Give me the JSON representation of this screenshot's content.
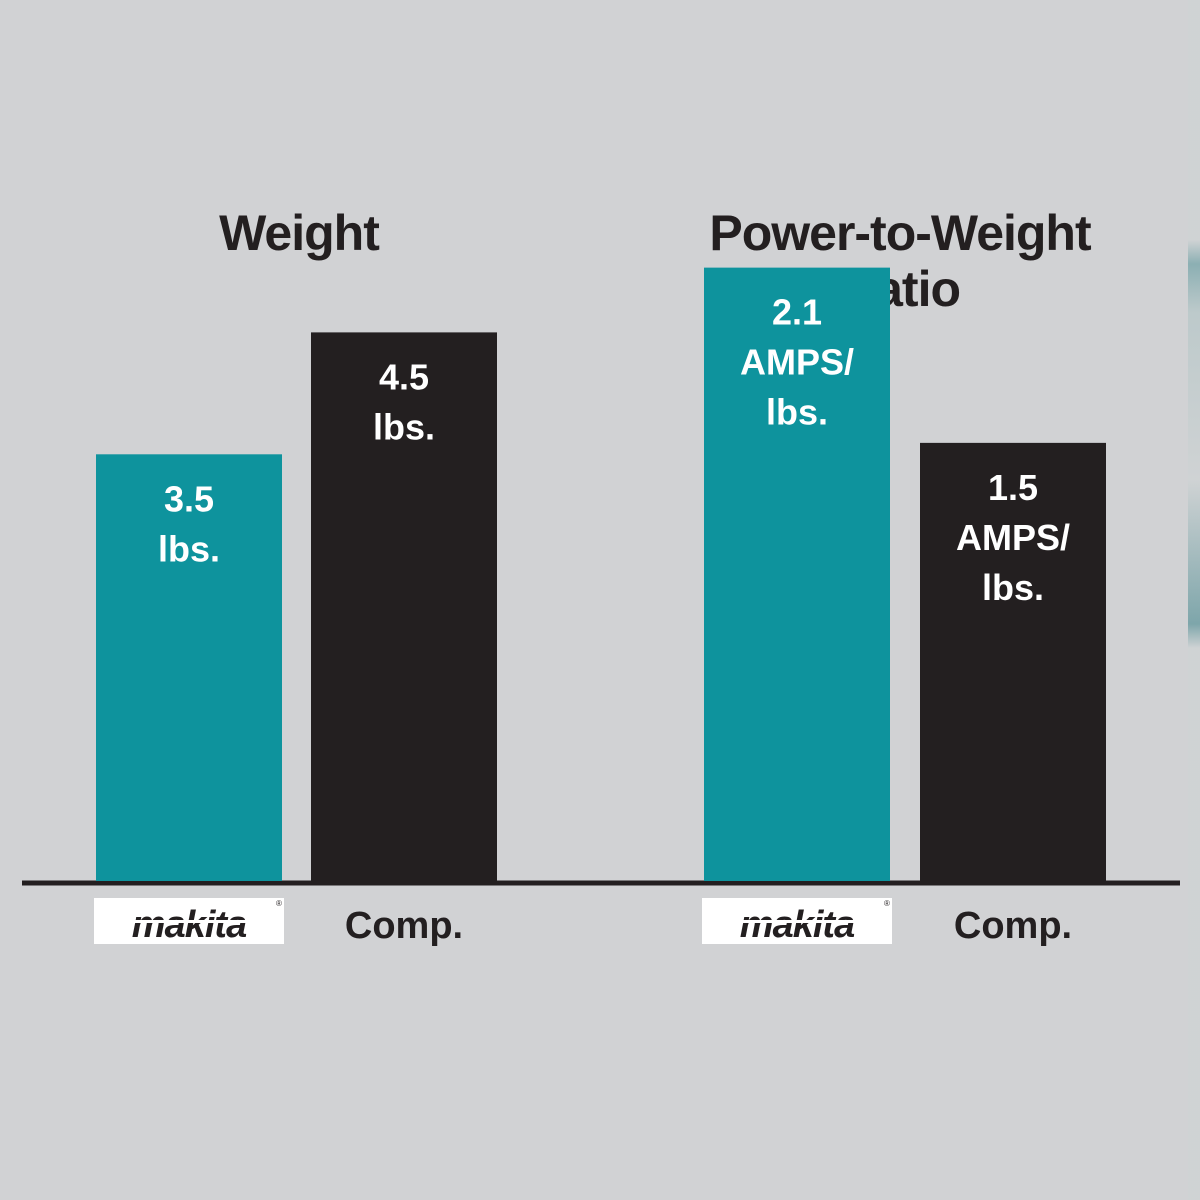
{
  "colors": {
    "background": "#d1d2d4",
    "makita": "#0e939d",
    "comp": "#231f20",
    "axis": "#231f20",
    "label_text": "#ffffff"
  },
  "logo": {
    "text": "makita"
  },
  "chart_data": [
    {
      "type": "bar",
      "title": "Weight",
      "categories": [
        "makita",
        "Comp."
      ],
      "values": [
        3.5,
        4.5
      ],
      "value_labels": [
        [
          "3.5",
          "lbs."
        ],
        [
          "4.5",
          "lbs."
        ]
      ],
      "ylim": [
        0,
        5.75
      ],
      "grid": false
    },
    {
      "type": "bar",
      "title": [
        "Power-to-Weight",
        "Ratio"
      ],
      "categories": [
        "makita",
        "Comp."
      ],
      "values": [
        2.1,
        1.5
      ],
      "value_labels": [
        [
          "2.1",
          "AMPS/",
          "lbs."
        ],
        [
          "1.5",
          "AMPS/",
          "lbs."
        ]
      ],
      "ylim": [
        0,
        2.4
      ],
      "grid": false
    }
  ]
}
